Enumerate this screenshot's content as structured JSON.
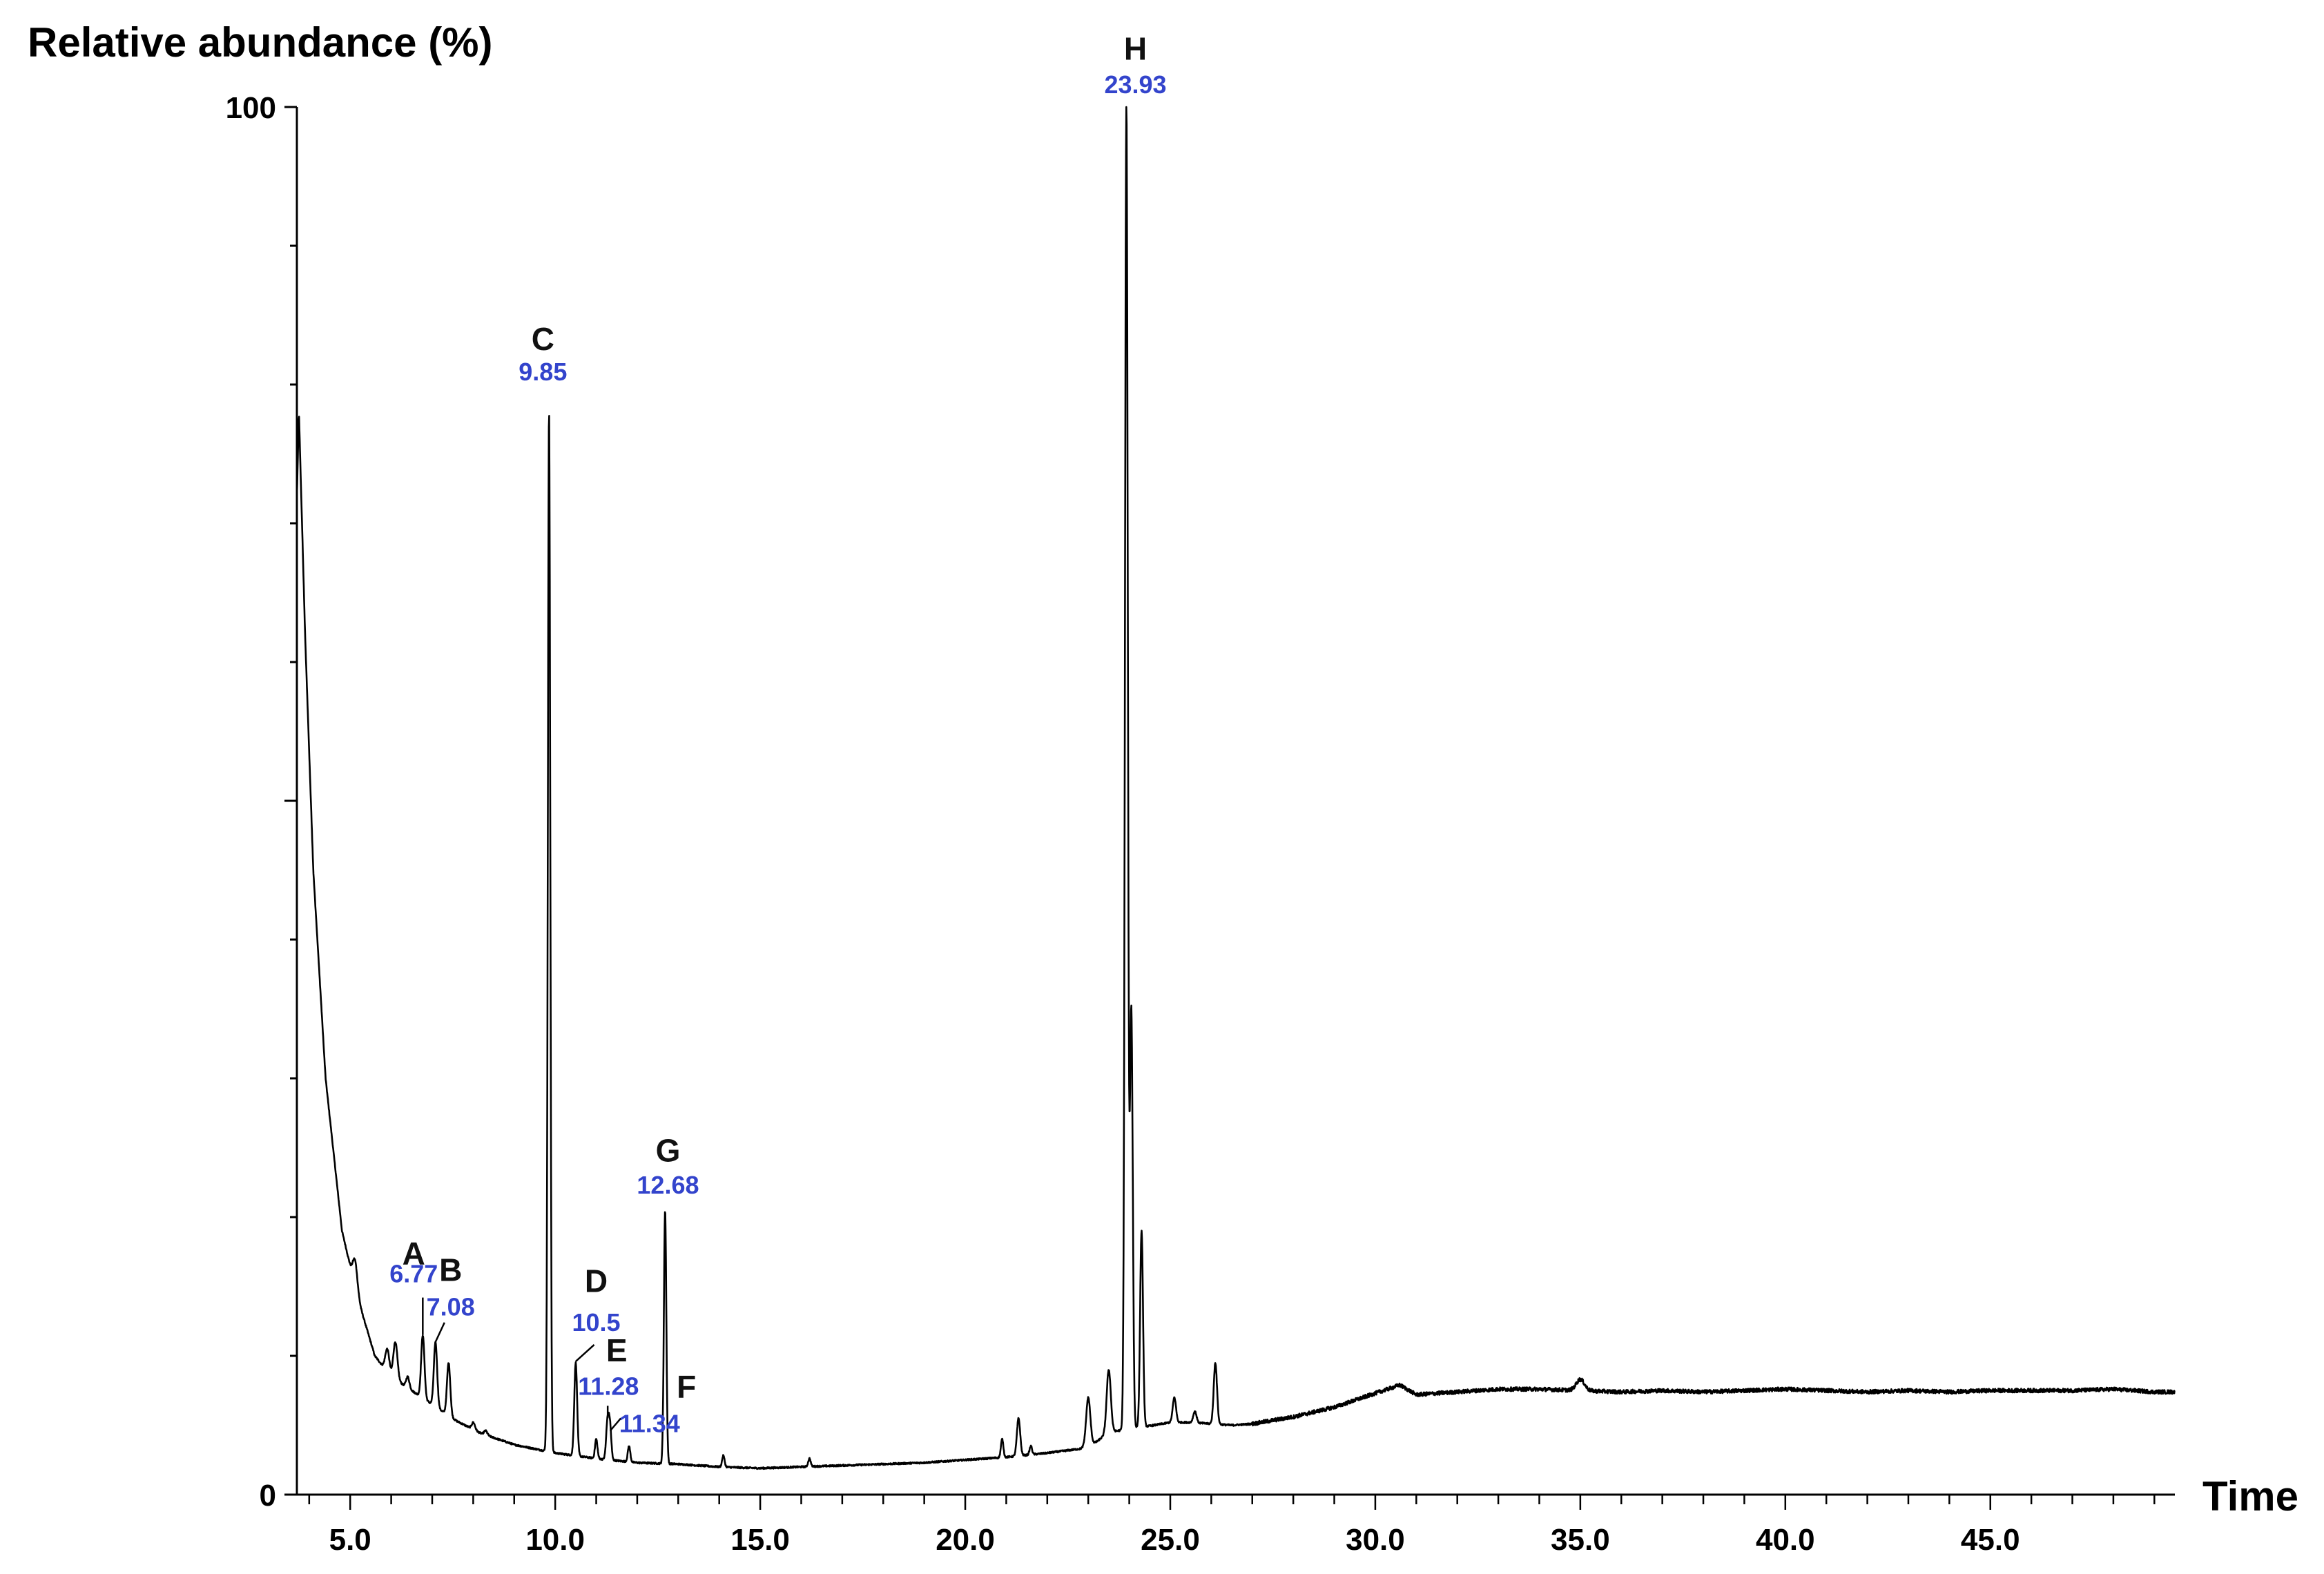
{
  "chart_data": {
    "type": "line",
    "ylabel": "Relative abundance (%)",
    "xlabel": "Time",
    "xlim": [
      3.7,
      49.5
    ],
    "ylim": [
      0,
      100
    ],
    "x_ticks": [
      "5.0",
      "10.0",
      "15.0",
      "20.0",
      "25.0",
      "30.0",
      "35.0",
      "40.0",
      "45.0"
    ],
    "x_tick_values": [
      5,
      10,
      15,
      20,
      25,
      30,
      35,
      40,
      45
    ],
    "y_ticks": [
      "0",
      "100"
    ],
    "y_tick_values": [
      0,
      100
    ],
    "grid": false,
    "line_color": "#000000",
    "label_color": "#3344cc",
    "baseline": {
      "x": [
        3.7,
        3.75,
        3.9,
        4.1,
        4.4,
        4.8,
        5.2,
        5.6,
        6.0,
        6.5,
        7.0,
        7.6,
        8.2,
        9.0,
        10.0,
        11.0,
        12.0,
        13.0,
        14.0,
        15.0,
        16.0,
        17.0,
        18.0,
        19.0,
        20.0,
        21.0,
        22.0,
        22.8,
        23.2,
        23.5,
        24.6,
        25.0,
        25.5,
        26.0,
        26.5,
        27.0,
        28.0,
        29.0,
        30.0,
        30.6,
        31.0,
        32.0,
        33.0,
        34.0,
        35.0,
        36.0,
        37.0,
        38.0,
        39.0,
        40.0,
        41.0,
        42.0,
        43.0,
        44.0,
        45.0,
        46.0,
        47.0,
        48.0,
        49.0,
        49.5
      ],
      "y": [
        72,
        78,
        62,
        45,
        30,
        19,
        14,
        10,
        8.5,
        7.5,
        6.5,
        5.3,
        4.4,
        3.6,
        3.0,
        2.6,
        2.3,
        2.2,
        2.0,
        1.9,
        2.0,
        2.1,
        2.2,
        2.3,
        2.5,
        2.7,
        3.0,
        3.3,
        3.8,
        4.5,
        5.0,
        5.2,
        5.2,
        5.1,
        5.0,
        5.1,
        5.6,
        6.3,
        7.3,
        7.9,
        7.2,
        7.4,
        7.6,
        7.6,
        7.5,
        7.4,
        7.5,
        7.4,
        7.5,
        7.6,
        7.5,
        7.4,
        7.5,
        7.4,
        7.5,
        7.5,
        7.5,
        7.6,
        7.4,
        7.4
      ]
    },
    "peaks": [
      {
        "t": 5.1,
        "h": 17,
        "w": 0.06
      },
      {
        "t": 5.9,
        "h": 10.5,
        "w": 0.05
      },
      {
        "t": 6.1,
        "h": 11,
        "w": 0.05
      },
      {
        "t": 6.4,
        "h": 8.5,
        "w": 0.04
      },
      {
        "t": 6.77,
        "h": 11.5,
        "w": 0.04
      },
      {
        "t": 7.08,
        "h": 11.0,
        "w": 0.04
      },
      {
        "t": 7.4,
        "h": 9.5,
        "w": 0.04
      },
      {
        "t": 8.0,
        "h": 5.2,
        "w": 0.04
      },
      {
        "t": 8.3,
        "h": 4.6,
        "w": 0.04
      },
      {
        "t": 9.85,
        "h": 78,
        "w": 0.03
      },
      {
        "t": 10.5,
        "h": 9.5,
        "w": 0.035
      },
      {
        "t": 11.0,
        "h": 4.0,
        "w": 0.03
      },
      {
        "t": 11.28,
        "h": 5.5,
        "w": 0.035
      },
      {
        "t": 11.34,
        "h": 4.6,
        "w": 0.03
      },
      {
        "t": 11.8,
        "h": 3.5,
        "w": 0.03
      },
      {
        "t": 12.68,
        "h": 20.5,
        "w": 0.03
      },
      {
        "t": 14.1,
        "h": 2.8,
        "w": 0.03
      },
      {
        "t": 16.2,
        "h": 2.6,
        "w": 0.03
      },
      {
        "t": 20.9,
        "h": 4.0,
        "w": 0.03
      },
      {
        "t": 21.3,
        "h": 5.5,
        "w": 0.04
      },
      {
        "t": 21.6,
        "h": 3.5,
        "w": 0.03
      },
      {
        "t": 23.0,
        "h": 7.0,
        "w": 0.05
      },
      {
        "t": 23.5,
        "h": 9.0,
        "w": 0.05
      },
      {
        "t": 23.93,
        "h": 100,
        "w": 0.035
      },
      {
        "t": 24.05,
        "h": 35,
        "w": 0.035
      },
      {
        "t": 24.3,
        "h": 19,
        "w": 0.035
      },
      {
        "t": 25.1,
        "h": 7.0,
        "w": 0.04
      },
      {
        "t": 25.6,
        "h": 6.0,
        "w": 0.04
      },
      {
        "t": 26.1,
        "h": 9.5,
        "w": 0.04
      },
      {
        "t": 35.0,
        "h": 8.3,
        "w": 0.1
      }
    ],
    "annotations": [
      {
        "letter": "A",
        "time": "6.77",
        "x": 6.77,
        "y": 11.5
      },
      {
        "letter": "B",
        "time": "7.08",
        "x": 7.08,
        "y": 11.0
      },
      {
        "letter": "C",
        "time": "9.85",
        "x": 9.85,
        "y": 78
      },
      {
        "letter": "D",
        "time": "10.5",
        "x": 10.5,
        "y": 9.5
      },
      {
        "letter": "E",
        "time": "11.28",
        "x": 11.28,
        "y": 5.5
      },
      {
        "letter": "F",
        "time": "11.34",
        "x": 11.34,
        "y": 4.6
      },
      {
        "letter": "G",
        "time": "12.68",
        "x": 12.68,
        "y": 20.5
      },
      {
        "letter": "H",
        "time": "23.93",
        "x": 23.93,
        "y": 100
      }
    ]
  }
}
